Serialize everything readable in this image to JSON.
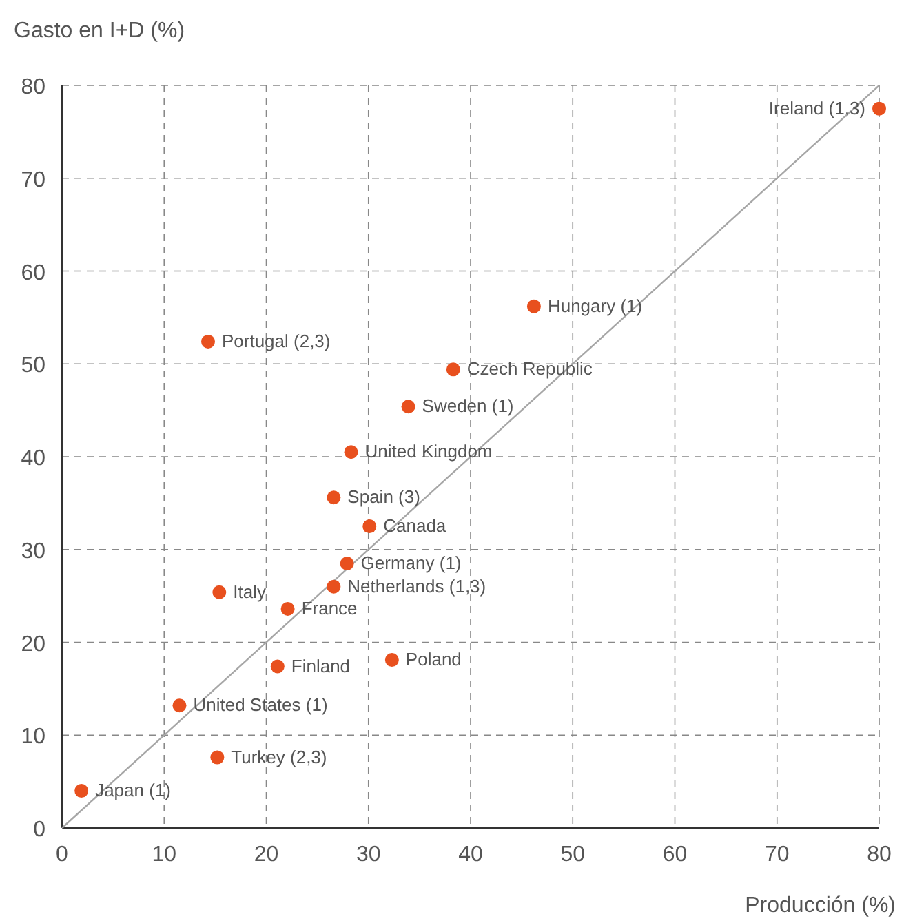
{
  "chart_data": {
    "type": "scatter",
    "xlabel": "Producción (%)",
    "ylabel": "Gasto en I+D (%)",
    "xlim": [
      0,
      80
    ],
    "ylim": [
      0,
      80
    ],
    "xticks": [
      0,
      10,
      20,
      30,
      40,
      50,
      60,
      70,
      80
    ],
    "yticks": [
      0,
      10,
      20,
      30,
      40,
      50,
      60,
      70,
      80
    ],
    "grid": true,
    "marker": "circle",
    "series": [
      {
        "type": "line",
        "marker": "none",
        "color": "#a6a6a6",
        "x": [
          0,
          80
        ],
        "values": [
          0,
          80
        ]
      },
      {
        "name": "Ireland (1,3)",
        "color": "#e8501e",
        "x": [
          80
        ],
        "values": [
          77.5
        ]
      },
      {
        "name": "Hungary (1)",
        "color": "#e8501e",
        "x": [
          46.2
        ],
        "values": [
          56.2
        ]
      },
      {
        "name": "Portugal (2,3)",
        "color": "#e8501e",
        "x": [
          14.3
        ],
        "values": [
          52.4
        ]
      },
      {
        "name": "Czech Republic",
        "color": "#e8501e",
        "x": [
          38.3
        ],
        "values": [
          49.4
        ]
      },
      {
        "name": "Sweden (1)",
        "color": "#e8501e",
        "x": [
          33.9
        ],
        "values": [
          45.4
        ]
      },
      {
        "name": "United Kingdom",
        "color": "#e8501e",
        "x": [
          28.3
        ],
        "values": [
          40.5
        ]
      },
      {
        "name": "Spain (3)",
        "color": "#e8501e",
        "x": [
          26.6
        ],
        "values": [
          35.6
        ]
      },
      {
        "name": "Canada",
        "color": "#e8501e",
        "x": [
          30.1
        ],
        "values": [
          32.5
        ]
      },
      {
        "name": "Germany (1)",
        "color": "#e8501e",
        "x": [
          27.9
        ],
        "values": [
          28.5
        ]
      },
      {
        "name": "Netherlands (1,3)",
        "color": "#e8501e",
        "x": [
          26.6
        ],
        "values": [
          26.0
        ]
      },
      {
        "name": "Italy",
        "color": "#e8501e",
        "x": [
          15.4
        ],
        "values": [
          25.4
        ]
      },
      {
        "name": "France",
        "color": "#e8501e",
        "x": [
          22.1
        ],
        "values": [
          23.6
        ]
      },
      {
        "name": "Finland",
        "color": "#e8501e",
        "x": [
          21.1
        ],
        "values": [
          17.4
        ]
      },
      {
        "name": "Poland",
        "color": "#e8501e",
        "x": [
          32.3
        ],
        "values": [
          18.1
        ]
      },
      {
        "name": "United States (1)",
        "color": "#e8501e",
        "x": [
          11.5
        ],
        "values": [
          13.2
        ]
      },
      {
        "name": "Turkey (2,3)",
        "color": "#e8501e",
        "x": [
          15.2
        ],
        "values": [
          7.6
        ]
      },
      {
        "name": "Japan (1)",
        "color": "#e8501e",
        "x": [
          1.9
        ],
        "values": [
          4.0
        ]
      }
    ]
  }
}
